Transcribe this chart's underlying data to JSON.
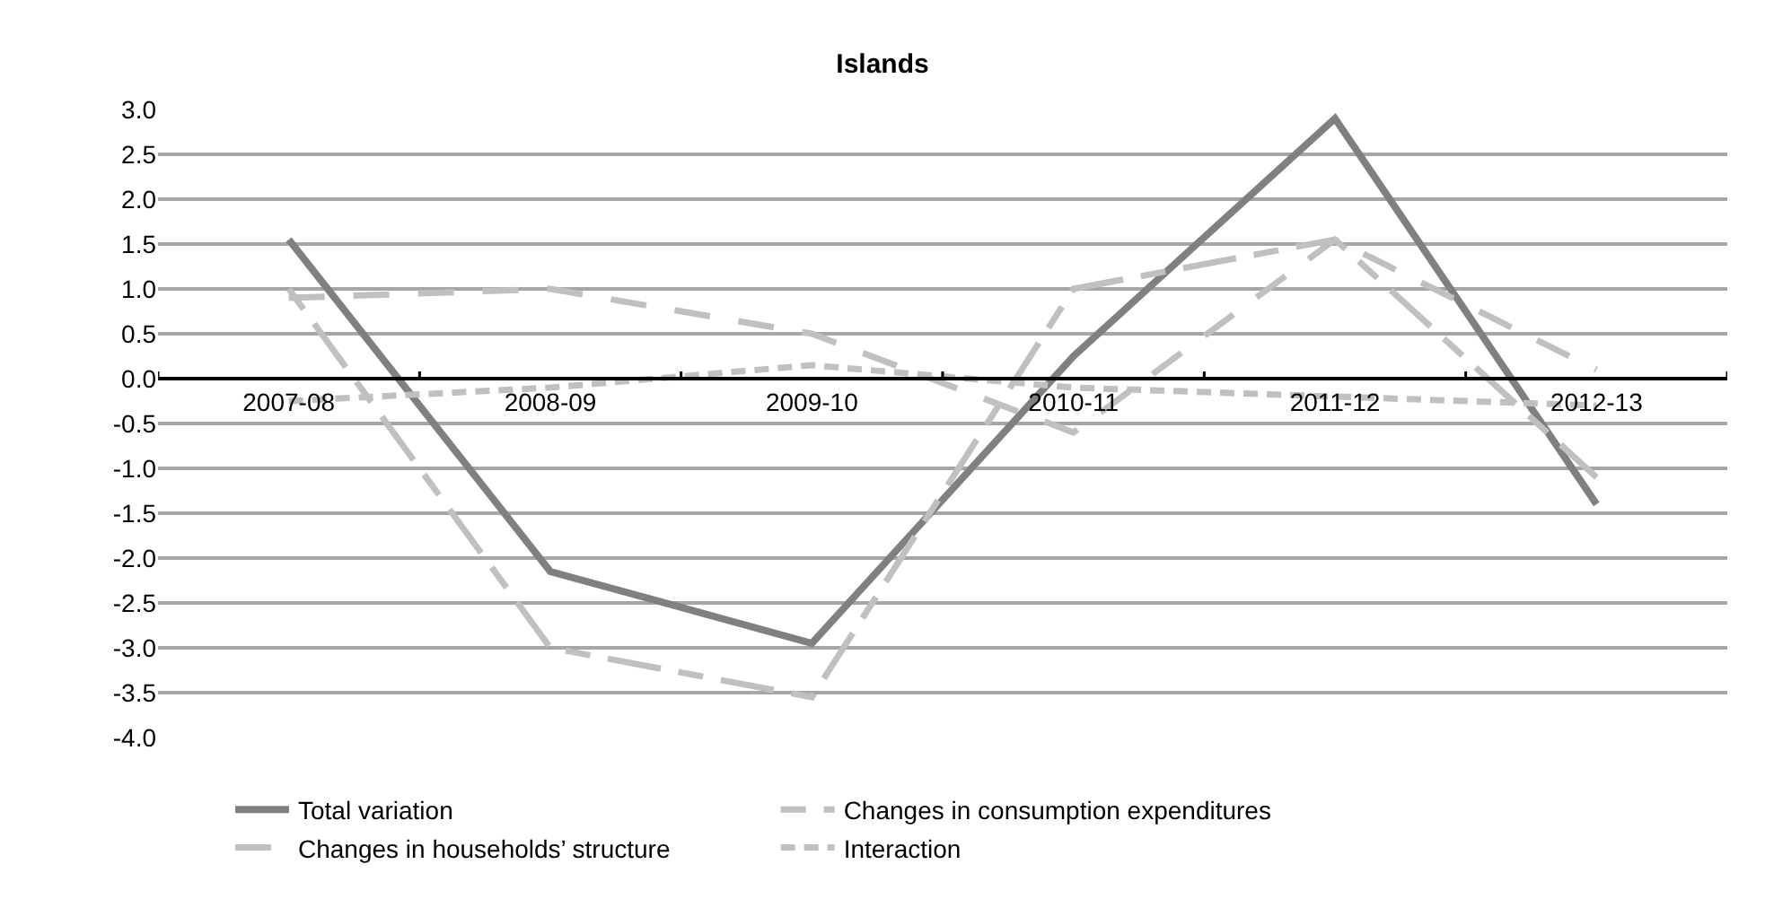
{
  "chart_data": {
    "type": "line",
    "title": "Islands",
    "categories": [
      "2007-08",
      "2008-09",
      "2009-10",
      "2010-11",
      "2011-12",
      "2012-13"
    ],
    "series": [
      {
        "name": "Total variation",
        "color": "#808080",
        "line_style": "solid",
        "values": [
          1.55,
          -2.15,
          -2.95,
          0.25,
          2.9,
          -1.4
        ]
      },
      {
        "name": "Changes in consumption expenditures",
        "color": "#c0c0c0",
        "line_style": "dashed",
        "values": [
          1.0,
          -3.0,
          -3.55,
          1.0,
          1.55,
          -1.1
        ]
      },
      {
        "name": "Changes in households’ structure",
        "color": "#c0c0c0",
        "line_style": "dashed",
        "values": [
          0.9,
          1.0,
          0.5,
          -0.6,
          1.55,
          0.1
        ]
      },
      {
        "name": "Interaction",
        "color": "#c0c0c0",
        "line_style": "dotted",
        "values": [
          -0.25,
          -0.1,
          0.15,
          -0.1,
          -0.2,
          -0.3
        ]
      }
    ],
    "ylim": [
      -4,
      3
    ],
    "yticks": [
      {
        "value": -4,
        "label": "-4.0"
      },
      {
        "value": -3.5,
        "label": "-3.5"
      },
      {
        "value": -3,
        "label": "-3.0"
      },
      {
        "value": -2.5,
        "label": "-2.5"
      },
      {
        "value": -2,
        "label": "-2.0"
      },
      {
        "value": -1.5,
        "label": "-1.5"
      },
      {
        "value": -1,
        "label": "-1.0"
      },
      {
        "value": -0.5,
        "label": "-0.5"
      },
      {
        "value": 0,
        "label": "0.0"
      },
      {
        "value": 0.5,
        "label": "0.5"
      },
      {
        "value": 1,
        "label": "1.0"
      },
      {
        "value": 1.5,
        "label": "1.5"
      },
      {
        "value": 2,
        "label": "2.0"
      },
      {
        "value": 2.5,
        "label": "2.5"
      },
      {
        "value": 3,
        "label": "3.0"
      }
    ],
    "grid": "y",
    "legend": "bottom",
    "marker": "none"
  }
}
